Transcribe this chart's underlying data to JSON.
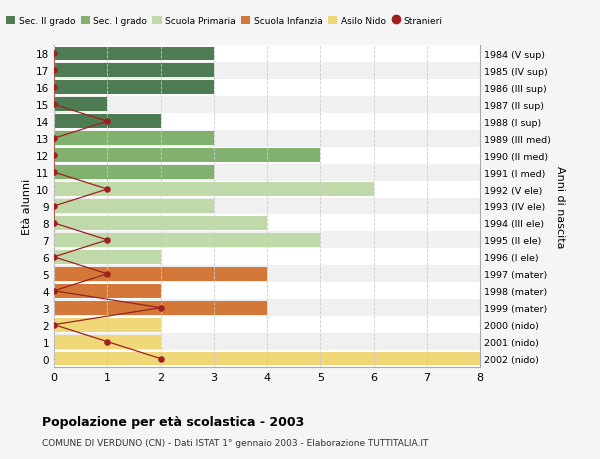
{
  "ages": [
    18,
    17,
    16,
    15,
    14,
    13,
    12,
    11,
    10,
    9,
    8,
    7,
    6,
    5,
    4,
    3,
    2,
    1,
    0
  ],
  "years": [
    "1984 (V sup)",
    "1985 (IV sup)",
    "1986 (III sup)",
    "1987 (II sup)",
    "1988 (I sup)",
    "1989 (III med)",
    "1990 (II med)",
    "1991 (I med)",
    "1992 (V ele)",
    "1993 (IV ele)",
    "1994 (III ele)",
    "1995 (II ele)",
    "1996 (I ele)",
    "1997 (mater)",
    "1998 (mater)",
    "1999 (mater)",
    "2000 (nido)",
    "2001 (nido)",
    "2002 (nido)"
  ],
  "bar_values": [
    3,
    3,
    3,
    1,
    2,
    3,
    5,
    3,
    6,
    3,
    4,
    5,
    2,
    4,
    2,
    4,
    2,
    2,
    8
  ],
  "bar_colors": [
    "#4e7c52",
    "#4e7c52",
    "#4e7c52",
    "#4e7c52",
    "#4e7c52",
    "#82b06e",
    "#82b06e",
    "#82b06e",
    "#c0d9a8",
    "#c0d9a8",
    "#c0d9a8",
    "#c0d9a8",
    "#c0d9a8",
    "#d4783a",
    "#d4783a",
    "#d4783a",
    "#f0d878",
    "#f0d878",
    "#f0d878"
  ],
  "stranieri_values": [
    0,
    0,
    0,
    0,
    1,
    0,
    0,
    0,
    1,
    0,
    0,
    1,
    0,
    1,
    0,
    2,
    0,
    1,
    2
  ],
  "stranieri_color": "#9e2020",
  "legend_labels": [
    "Sec. II grado",
    "Sec. I grado",
    "Scuola Primaria",
    "Scuola Infanzia",
    "Asilo Nido",
    "Stranieri"
  ],
  "legend_colors": [
    "#4e7c52",
    "#82b06e",
    "#c0d9a8",
    "#d4783a",
    "#f0d878",
    "#9e2020"
  ],
  "title": "Popolazione per età scolastica - 2003",
  "subtitle": "COMUNE DI VERDUNO (CN) - Dati ISTAT 1° gennaio 2003 - Elaborazione TUTTITALIA.IT",
  "ylabel_left": "Età alunni",
  "ylabel_right": "Anni di nascita",
  "xlim": [
    0,
    8
  ],
  "background_color": "#f5f5f5",
  "row_bg_even": "#ffffff",
  "row_bg_odd": "#f0f0f0",
  "grid_color": "#cccccc",
  "bar_height": 0.82
}
